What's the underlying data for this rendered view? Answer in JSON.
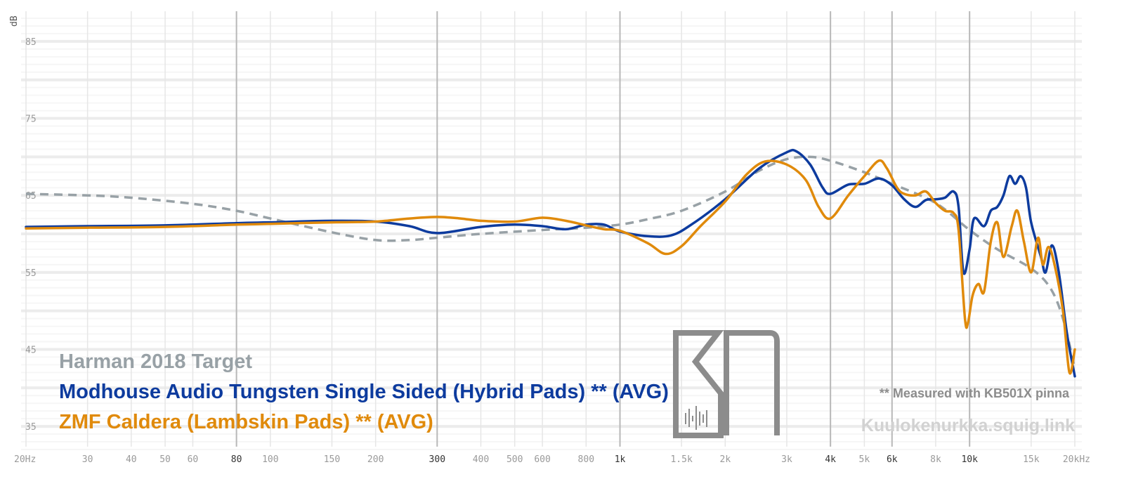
{
  "chart_data": {
    "type": "line",
    "title": "",
    "xlabel": "",
    "ylabel": "dB",
    "xscale": "log",
    "xlim": [
      20,
      20000
    ],
    "ylim": [
      32,
      88
    ],
    "grid": true,
    "y_ticks": [
      {
        "value": 85,
        "label": "85"
      },
      {
        "value": 75,
        "label": "75"
      },
      {
        "value": 65,
        "label": "65"
      },
      {
        "value": 55,
        "label": "55"
      },
      {
        "value": 45,
        "label": "45"
      },
      {
        "value": 35,
        "label": "35"
      }
    ],
    "x_ticks": [
      {
        "value": 20,
        "label": "20Hz",
        "bold": false
      },
      {
        "value": 30,
        "label": "30",
        "bold": false
      },
      {
        "value": 40,
        "label": "40",
        "bold": false
      },
      {
        "value": 50,
        "label": "50",
        "bold": false
      },
      {
        "value": 60,
        "label": "60",
        "bold": false
      },
      {
        "value": 80,
        "label": "80",
        "bold": true
      },
      {
        "value": 100,
        "label": "100",
        "bold": false
      },
      {
        "value": 150,
        "label": "150",
        "bold": false
      },
      {
        "value": 200,
        "label": "200",
        "bold": false
      },
      {
        "value": 300,
        "label": "300",
        "bold": true
      },
      {
        "value": 400,
        "label": "400",
        "bold": false
      },
      {
        "value": 500,
        "label": "500",
        "bold": false
      },
      {
        "value": 600,
        "label": "600",
        "bold": false
      },
      {
        "value": 800,
        "label": "800",
        "bold": false
      },
      {
        "value": 1000,
        "label": "1k",
        "bold": true
      },
      {
        "value": 1500,
        "label": "1.5k",
        "bold": false
      },
      {
        "value": 2000,
        "label": "2k",
        "bold": false
      },
      {
        "value": 3000,
        "label": "3k",
        "bold": false
      },
      {
        "value": 4000,
        "label": "4k",
        "bold": true
      },
      {
        "value": 5000,
        "label": "5k",
        "bold": false
      },
      {
        "value": 6000,
        "label": "6k",
        "bold": true
      },
      {
        "value": 8000,
        "label": "8k",
        "bold": false
      },
      {
        "value": 10000,
        "label": "10k",
        "bold": true
      },
      {
        "value": 15000,
        "label": "15k",
        "bold": false
      },
      {
        "value": 20000,
        "label": "20kHz",
        "bold": false
      }
    ],
    "series": [
      {
        "name": "Harman 2018 Target",
        "color": "#98a1a6",
        "dashed": true,
        "points": [
          [
            20,
            65.2
          ],
          [
            30,
            65.0
          ],
          [
            40,
            64.7
          ],
          [
            60,
            63.9
          ],
          [
            80,
            63.0
          ],
          [
            100,
            62.0
          ],
          [
            150,
            60.2
          ],
          [
            200,
            59.2
          ],
          [
            250,
            59.2
          ],
          [
            300,
            59.5
          ],
          [
            400,
            60.0
          ],
          [
            600,
            60.5
          ],
          [
            800,
            60.8
          ],
          [
            1000,
            61.2
          ],
          [
            1200,
            61.9
          ],
          [
            1500,
            63.0
          ],
          [
            2000,
            65.5
          ],
          [
            2500,
            68.2
          ],
          [
            3000,
            69.7
          ],
          [
            3500,
            70.0
          ],
          [
            4000,
            69.5
          ],
          [
            5000,
            68.0
          ],
          [
            6000,
            66.5
          ],
          [
            8000,
            64.0
          ],
          [
            10000,
            60.5
          ],
          [
            12000,
            58.0
          ],
          [
            15000,
            55.5
          ],
          [
            17000,
            53.0
          ],
          [
            18500,
            49.0
          ],
          [
            20000,
            42.5
          ]
        ]
      },
      {
        "name": "Modhouse Audio Tungsten Single Sided (Hybrid Pads) ** (AVG)",
        "color": "#0d3b9e",
        "dashed": false,
        "points": [
          [
            20,
            60.9
          ],
          [
            30,
            61.0
          ],
          [
            50,
            61.1
          ],
          [
            80,
            61.4
          ],
          [
            100,
            61.5
          ],
          [
            150,
            61.7
          ],
          [
            200,
            61.6
          ],
          [
            250,
            61.0
          ],
          [
            300,
            60.1
          ],
          [
            400,
            60.9
          ],
          [
            500,
            61.2
          ],
          [
            600,
            61.0
          ],
          [
            700,
            60.6
          ],
          [
            800,
            61.2
          ],
          [
            900,
            61.2
          ],
          [
            1000,
            60.3
          ],
          [
            1200,
            59.7
          ],
          [
            1400,
            59.8
          ],
          [
            1600,
            61.2
          ],
          [
            2000,
            64.5
          ],
          [
            2500,
            68.5
          ],
          [
            3000,
            70.6
          ],
          [
            3200,
            70.7
          ],
          [
            3500,
            69.0
          ],
          [
            3800,
            66.0
          ],
          [
            4000,
            65.2
          ],
          [
            4500,
            66.4
          ],
          [
            5000,
            66.5
          ],
          [
            5500,
            67.2
          ],
          [
            6000,
            66.3
          ],
          [
            6500,
            64.5
          ],
          [
            7000,
            63.5
          ],
          [
            7500,
            64.4
          ],
          [
            8000,
            64.5
          ],
          [
            8500,
            64.7
          ],
          [
            9000,
            65.5
          ],
          [
            9300,
            63.5
          ],
          [
            9600,
            55.0
          ],
          [
            10000,
            58.0
          ],
          [
            10300,
            62.0
          ],
          [
            11000,
            61.0
          ],
          [
            11500,
            63.0
          ],
          [
            12000,
            63.5
          ],
          [
            12500,
            65.0
          ],
          [
            13000,
            67.5
          ],
          [
            13500,
            66.5
          ],
          [
            14000,
            67.5
          ],
          [
            14500,
            66.0
          ],
          [
            15000,
            61.5
          ],
          [
            16000,
            57.0
          ],
          [
            16500,
            55.0
          ],
          [
            17200,
            58.5
          ],
          [
            18000,
            55.0
          ],
          [
            19000,
            47.0
          ],
          [
            20000,
            41.5
          ]
        ]
      },
      {
        "name": "ZMF Caldera (Lambskin Pads) ** (AVG)",
        "color": "#e08a0b",
        "dashed": false,
        "points": [
          [
            20,
            60.7
          ],
          [
            30,
            60.8
          ],
          [
            50,
            60.9
          ],
          [
            80,
            61.2
          ],
          [
            100,
            61.3
          ],
          [
            150,
            61.5
          ],
          [
            200,
            61.6
          ],
          [
            250,
            62.0
          ],
          [
            300,
            62.2
          ],
          [
            350,
            62.0
          ],
          [
            400,
            61.7
          ],
          [
            500,
            61.6
          ],
          [
            600,
            62.1
          ],
          [
            700,
            61.7
          ],
          [
            800,
            61.1
          ],
          [
            900,
            60.6
          ],
          [
            1000,
            60.4
          ],
          [
            1200,
            58.8
          ],
          [
            1350,
            57.4
          ],
          [
            1500,
            58.4
          ],
          [
            1700,
            61.0
          ],
          [
            2000,
            64.2
          ],
          [
            2300,
            67.7
          ],
          [
            2600,
            69.4
          ],
          [
            3000,
            69.0
          ],
          [
            3400,
            67.0
          ],
          [
            3700,
            63.5
          ],
          [
            4000,
            62.0
          ],
          [
            4500,
            65.0
          ],
          [
            5000,
            67.5
          ],
          [
            5500,
            69.5
          ],
          [
            5800,
            68.5
          ],
          [
            6200,
            66.0
          ],
          [
            6500,
            65.2
          ],
          [
            7000,
            65.0
          ],
          [
            7500,
            65.5
          ],
          [
            8000,
            64.0
          ],
          [
            8500,
            63.0
          ],
          [
            9000,
            62.7
          ],
          [
            9300,
            60.5
          ],
          [
            9700,
            49.0
          ],
          [
            9900,
            48.5
          ],
          [
            10200,
            52.0
          ],
          [
            10600,
            53.5
          ],
          [
            11000,
            52.5
          ],
          [
            11500,
            59.0
          ],
          [
            12000,
            61.5
          ],
          [
            12500,
            57.0
          ],
          [
            13200,
            61.0
          ],
          [
            13700,
            63.0
          ],
          [
            14300,
            59.0
          ],
          [
            15000,
            55.0
          ],
          [
            15700,
            59.5
          ],
          [
            16200,
            56.0
          ],
          [
            16800,
            58.3
          ],
          [
            17500,
            56.0
          ],
          [
            18500,
            50.0
          ],
          [
            19300,
            42.0
          ],
          [
            20000,
            45.0
          ]
        ]
      }
    ],
    "legend": [
      "Harman 2018 Target",
      "Modhouse Audio Tungsten Single Sided (Hybrid Pads) ** (AVG)",
      "ZMF Caldera (Lambskin Pads) ** (AVG)"
    ]
  },
  "note": "** Measured with KB501X pinna",
  "watermark": "Kuulokenurkka.squig.link"
}
